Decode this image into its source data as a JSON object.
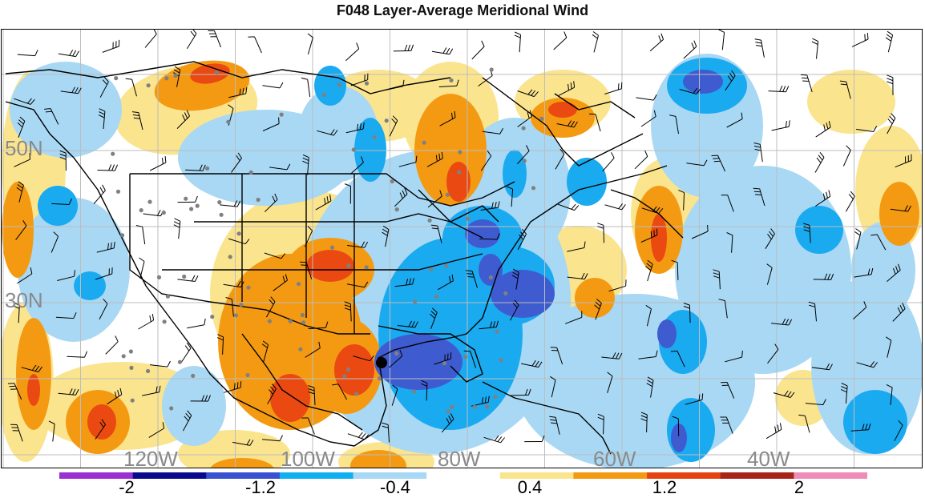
{
  "title": "F048 Layer-Average Meridional Wind",
  "map": {
    "lat_labels": [
      "50N",
      "30N"
    ],
    "lon_labels": [
      "120W",
      "100W",
      "80W",
      "60W",
      "40W"
    ],
    "shading": {
      "strong_negative": "#3f5bd0",
      "moderate_negative": "#1aaaf0",
      "weak_negative": "#a8d8f4",
      "weak_positive": "#fbe48e",
      "moderate_positive": "#f39a12",
      "strong_positive": "#ea4a12"
    },
    "storm_marker_color": "#000000"
  },
  "colorbar": {
    "labels": [
      "-2",
      "-1.2",
      "-0.4",
      "0.4",
      "1.2",
      "2"
    ],
    "colors": [
      "#9a30d0",
      "#0a0a8c",
      "#3a52d0",
      "#10b0f0",
      "#a8d8f4",
      "#ffffff",
      "#fbe48e",
      "#f39a12",
      "#e54412",
      "#a82318",
      "#f08cb8"
    ]
  }
}
